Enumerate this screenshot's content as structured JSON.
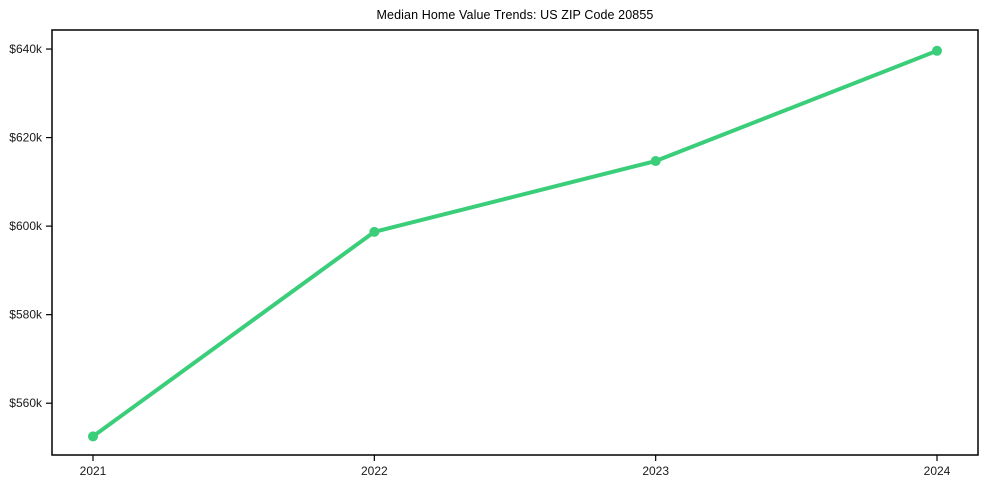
{
  "chart_data": {
    "type": "line",
    "title": "Median Home Value Trends: US ZIP Code 20855",
    "x": [
      2021,
      2022,
      2023,
      2024
    ],
    "x_labels": [
      "2021",
      "2022",
      "2023",
      "2024"
    ],
    "series": [
      {
        "name": "Median Home Value",
        "values": [
          552500,
          598700,
          614700,
          639600
        ]
      }
    ],
    "y_ticks": [
      {
        "value": 560000,
        "label": "$560k"
      },
      {
        "value": 580000,
        "label": "$580k"
      },
      {
        "value": 600000,
        "label": "$600k"
      },
      {
        "value": 620000,
        "label": "$620k"
      },
      {
        "value": 640000,
        "label": "$640k"
      }
    ],
    "ylim": [
      548300,
      644300
    ],
    "xlabel": "",
    "ylabel": "",
    "grid": false,
    "legend": null,
    "colors": {
      "line": "#3bce7a",
      "marker": "#3bce7a",
      "axis": "#000000",
      "tick_text": "#1a1a1a",
      "background": "#ffffff"
    }
  }
}
